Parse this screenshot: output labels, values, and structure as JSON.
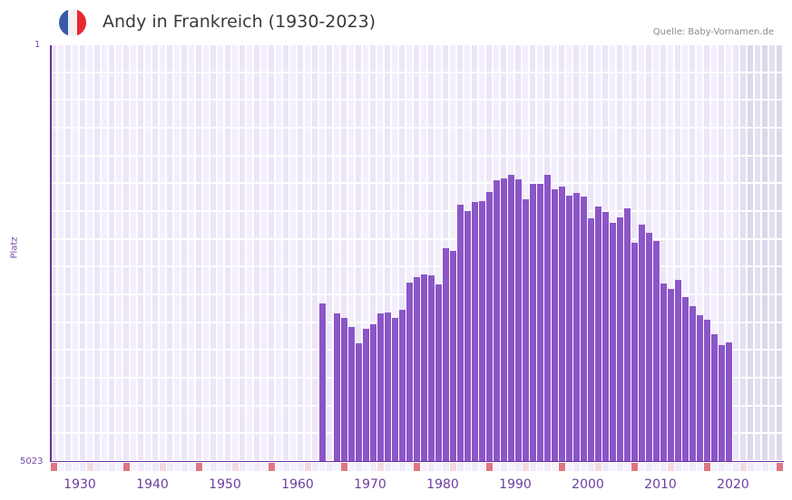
{
  "header": {
    "title": "Andy in Frankreich (1930-2023)",
    "source": "Quelle: Baby-Vornamen.de",
    "flag_icon": "france-flag-icon",
    "flag_colors": [
      "#3a5aa8",
      "#f2f2f2",
      "#e8282e"
    ]
  },
  "colors": {
    "bar": "#8b56c8",
    "axis": "#6b2fa0",
    "grid_light": "#f3effc",
    "grid_dark": "#ece6f8",
    "future_bg": "#e4e0ef",
    "decade_tick": "#e07580",
    "half_decade_tick": "#f5d8de"
  },
  "chart_data": {
    "type": "bar",
    "title": "Andy in Frankreich (1930-2023)",
    "xlabel": "",
    "ylabel": "Platz",
    "y_inverted": true,
    "ylim": [
      5023,
      1
    ],
    "y_tick_labels": [
      "1",
      "5023"
    ],
    "x_tick_labels": [
      "1930",
      "1940",
      "1950",
      "1960",
      "1970",
      "1980",
      "1990",
      "2000",
      "2010",
      "2020"
    ],
    "grid": true,
    "source": "Quelle: Baby-Vornamen.de",
    "categories": [
      1965,
      1966,
      1967,
      1968,
      1969,
      1970,
      1971,
      1972,
      1973,
      1974,
      1975,
      1976,
      1977,
      1978,
      1979,
      1980,
      1981,
      1982,
      1983,
      1984,
      1985,
      1986,
      1987,
      1988,
      1989,
      1990,
      1991,
      1992,
      1993,
      1994,
      1995,
      1996,
      1997,
      1998,
      1999,
      2000,
      2001,
      2002,
      2003,
      2004,
      2005,
      2006,
      2007,
      2008,
      2009,
      2010,
      2011,
      2012,
      2013,
      2014,
      2015,
      2016,
      2017,
      2018,
      2019,
      2020,
      2021
    ],
    "series": [
      {
        "name": "Platz",
        "values": [
          3112,
          null,
          3232,
          3287,
          3396,
          3592,
          3418,
          3363,
          3232,
          3221,
          3287,
          3188,
          2861,
          2795,
          2762,
          2773,
          2882,
          2446,
          2479,
          1922,
          1998,
          1889,
          1878,
          1769,
          1627,
          1605,
          1562,
          1616,
          1856,
          1671,
          1671,
          1562,
          1736,
          1703,
          1813,
          1780,
          1824,
          2086,
          1944,
          2009,
          2140,
          2075,
          1966,
          2381,
          2162,
          2260,
          2358,
          2871,
          2937,
          2828,
          3035,
          3145,
          3254,
          3309,
          3483,
          3614,
          3582
        ]
      }
    ]
  }
}
